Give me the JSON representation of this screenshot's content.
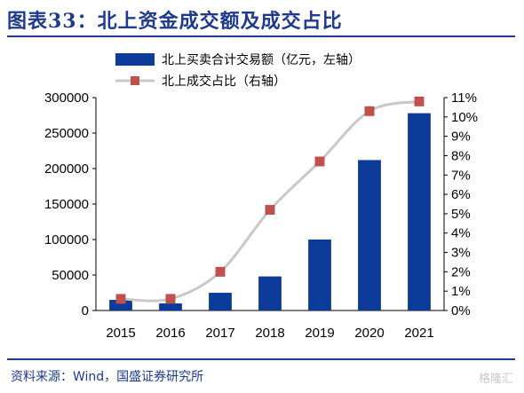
{
  "figure": {
    "title": "图表33：北上资金成交额及成交占比",
    "source": "资料来源：Wind，国盛证券研究所",
    "watermark": "格隆汇"
  },
  "chart_data": {
    "type": "bar",
    "categories": [
      "2015",
      "2016",
      "2017",
      "2018",
      "2019",
      "2020",
      "2021"
    ],
    "series": [
      {
        "name": "北上买卖合计交易额（亿元，左轴）",
        "type": "bar",
        "axis": "left",
        "values": [
          15000,
          10000,
          25000,
          48000,
          100000,
          212000,
          278000
        ],
        "color": "#0d3b99"
      },
      {
        "name": "北上成交占比（右轴）",
        "type": "line",
        "axis": "right",
        "values": [
          0.6,
          0.6,
          2.0,
          5.2,
          7.7,
          10.3,
          10.8
        ],
        "line_color": "#c8c8c8",
        "marker_color": "#c0504d"
      }
    ],
    "y_left": {
      "ylim": [
        0,
        300000
      ],
      "ticks": [
        0,
        50000,
        100000,
        150000,
        200000,
        250000,
        300000
      ],
      "tick_labels": [
        "0",
        "50000",
        "100000",
        "150000",
        "200000",
        "250000",
        "300000"
      ]
    },
    "y_right": {
      "ylim": [
        0,
        11
      ],
      "ticks": [
        0,
        1,
        2,
        3,
        4,
        5,
        6,
        7,
        8,
        9,
        10,
        11
      ],
      "tick_labels": [
        "0%",
        "1%",
        "2%",
        "3%",
        "4%",
        "5%",
        "6%",
        "7%",
        "8%",
        "9%",
        "10%",
        "11%"
      ]
    },
    "grid": false,
    "legend_position": "top-left"
  }
}
